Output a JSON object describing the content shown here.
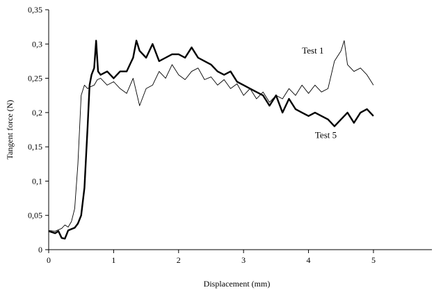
{
  "chart_data": {
    "type": "line",
    "title": "",
    "xlabel": "Displacement (mm)",
    "ylabel": "Tangent force (N)",
    "xlim": [
      0,
      5.9
    ],
    "ylim": [
      0,
      0.35
    ],
    "xticks": [
      0,
      1,
      2,
      3,
      4,
      5
    ],
    "yticks": [
      0,
      0.05,
      0.1,
      0.15,
      0.2,
      0.25,
      0.3,
      0.35
    ],
    "x_tick_labels": [
      "0",
      "1",
      "2",
      "3",
      "4",
      "5"
    ],
    "y_tick_labels": [
      "0",
      "0,05",
      "0,1",
      "0,15",
      "0,2",
      "0,25",
      "0,3",
      "0,35"
    ],
    "grid": false,
    "legend": "none",
    "annotations": [
      {
        "text": "Test 1",
        "x": 3.9,
        "y": 0.286
      },
      {
        "text": "Test 5",
        "x": 4.1,
        "y": 0.163
      }
    ],
    "series": [
      {
        "name": "Test 1",
        "color": "#000000",
        "style": "thin",
        "x": [
          0,
          0.1,
          0.2,
          0.25,
          0.3,
          0.35,
          0.4,
          0.45,
          0.5,
          0.55,
          0.6,
          0.65,
          0.7,
          0.75,
          0.8,
          0.9,
          1.0,
          1.1,
          1.2,
          1.3,
          1.4,
          1.5,
          1.6,
          1.7,
          1.8,
          1.9,
          2.0,
          2.1,
          2.2,
          2.3,
          2.4,
          2.5,
          2.6,
          2.7,
          2.8,
          2.9,
          3.0,
          3.1,
          3.2,
          3.3,
          3.4,
          3.5,
          3.6,
          3.7,
          3.8,
          3.9,
          4.0,
          4.1,
          4.2,
          4.3,
          4.4,
          4.5,
          4.55,
          4.6,
          4.7,
          4.8,
          4.9,
          5.0
        ],
        "y": [
          0.028,
          0.027,
          0.031,
          0.036,
          0.033,
          0.041,
          0.06,
          0.125,
          0.225,
          0.24,
          0.235,
          0.238,
          0.24,
          0.248,
          0.25,
          0.24,
          0.245,
          0.235,
          0.228,
          0.25,
          0.21,
          0.235,
          0.24,
          0.26,
          0.25,
          0.27,
          0.255,
          0.248,
          0.26,
          0.265,
          0.248,
          0.252,
          0.24,
          0.248,
          0.235,
          0.242,
          0.225,
          0.235,
          0.22,
          0.23,
          0.215,
          0.225,
          0.22,
          0.235,
          0.225,
          0.24,
          0.228,
          0.24,
          0.23,
          0.235,
          0.275,
          0.29,
          0.305,
          0.27,
          0.26,
          0.265,
          0.255,
          0.24
        ]
      },
      {
        "name": "Test 5",
        "color": "#000000",
        "style": "thick",
        "x": [
          0,
          0.1,
          0.15,
          0.2,
          0.25,
          0.3,
          0.35,
          0.4,
          0.45,
          0.5,
          0.55,
          0.6,
          0.63,
          0.66,
          0.7,
          0.73,
          0.76,
          0.8,
          0.9,
          1.0,
          1.1,
          1.2,
          1.3,
          1.35,
          1.4,
          1.5,
          1.6,
          1.7,
          1.8,
          1.9,
          2.0,
          2.1,
          2.2,
          2.3,
          2.4,
          2.5,
          2.6,
          2.7,
          2.8,
          2.9,
          3.0,
          3.1,
          3.2,
          3.3,
          3.4,
          3.5,
          3.6,
          3.7,
          3.8,
          3.9,
          4.0,
          4.1,
          4.2,
          4.3,
          4.4,
          4.5,
          4.6,
          4.7,
          4.8,
          4.9,
          5.0
        ],
        "y": [
          0.027,
          0.024,
          0.027,
          0.017,
          0.016,
          0.028,
          0.03,
          0.032,
          0.038,
          0.05,
          0.09,
          0.18,
          0.24,
          0.255,
          0.265,
          0.305,
          0.26,
          0.255,
          0.26,
          0.25,
          0.26,
          0.26,
          0.28,
          0.305,
          0.29,
          0.28,
          0.3,
          0.275,
          0.28,
          0.285,
          0.285,
          0.28,
          0.295,
          0.28,
          0.275,
          0.27,
          0.26,
          0.255,
          0.26,
          0.245,
          0.24,
          0.235,
          0.23,
          0.225,
          0.21,
          0.225,
          0.2,
          0.22,
          0.205,
          0.2,
          0.195,
          0.2,
          0.195,
          0.19,
          0.18,
          0.19,
          0.2,
          0.185,
          0.2,
          0.205,
          0.195
        ]
      }
    ]
  }
}
